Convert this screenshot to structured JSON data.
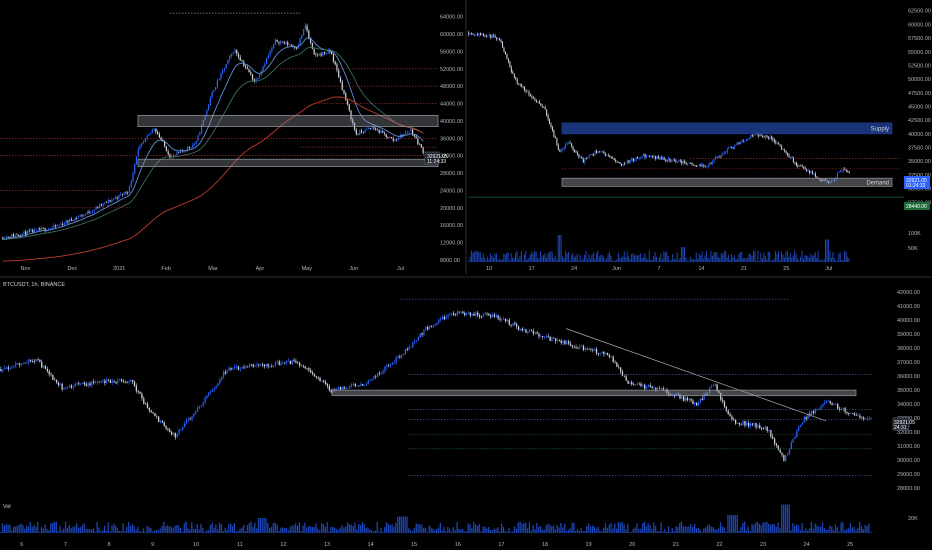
{
  "colors": {
    "background": "#000000",
    "candle_up": "#2962ff",
    "candle_down": "#d1d4dc",
    "ema_fast": "#5f8fd8",
    "ema_mid": "#3d7a66",
    "ema_slow": "#c0392b",
    "resistance_dotted": "#b2352b",
    "demand_zone_fill": "#9598a1",
    "supply_zone_fill": "#1e3d8f",
    "volume_bar": "#2962ff",
    "green_level": "#1f6b3a",
    "trendline": "#9598a1",
    "axis_text": "#b2b5be"
  },
  "chart_data": [
    {
      "id": "daily",
      "type": "candlestick",
      "title": "",
      "x_ticks": [
        "Nov",
        "Dec",
        "2021",
        "Feb",
        "Mar",
        "Apr",
        "May",
        "Jun",
        "Jul"
      ],
      "y_ticks": [
        "64000.00",
        "60000.00",
        "56000.00",
        "52000.00",
        "48000.00",
        "44000.00",
        "40000.00",
        "36000.00",
        "32000.00",
        "28000.00",
        "24000.00",
        "20000.00",
        "16000.00",
        "12000.00",
        "8000.00"
      ],
      "y_range": [
        8000,
        66000
      ],
      "last_price_label": "32921.05",
      "last_price_countdown": "11:24:33",
      "indicators": [
        "EMA fast",
        "EMA mid",
        "EMA slow"
      ],
      "zones": [
        {
          "label": "",
          "from": 38700,
          "to": 41300
        },
        {
          "label": "",
          "from": 29500,
          "to": 31200
        }
      ],
      "swing_high": 64800,
      "swing_low": 29500
    },
    {
      "id": "h4",
      "type": "candlestick",
      "title": "",
      "x_ticks": [
        "10",
        "17",
        "24",
        "Jun",
        "7",
        "14",
        "21",
        "25",
        "Jul"
      ],
      "y_ticks": [
        "62500.00",
        "60000.00",
        "57500.00",
        "55000.00",
        "52500.00",
        "50000.00",
        "47500.00",
        "45000.00",
        "42500.00",
        "40000.00",
        "37500.00",
        "35000.00",
        "32500.00",
        "30000.00",
        "27500.00"
      ],
      "y_range": [
        27000,
        63000
      ],
      "volume_ticks": [
        "100K",
        "50K"
      ],
      "last_price_label": "32921.05",
      "last_price_countdown": "01:24:33",
      "green_level_label": "28440.00",
      "zones": [
        {
          "label": "Supply",
          "from": 40000,
          "to": 42000
        },
        {
          "label": "Demand",
          "from": 30400,
          "to": 31900
        }
      ]
    },
    {
      "id": "h1",
      "type": "candlestick",
      "title": "BTCUSDT, 1h, BINANCE",
      "x_ticks": [
        "6",
        "7",
        "8",
        "9",
        "10",
        "11",
        "12",
        "13",
        "14",
        "15",
        "16",
        "17",
        "18",
        "19",
        "20",
        "21",
        "22",
        "23",
        "24",
        "25"
      ],
      "y_ticks": [
        "42000.00",
        "41000.00",
        "40000.00",
        "39000.00",
        "38000.00",
        "37000.00",
        "36000.00",
        "35000.00",
        "34000.00",
        "33000.00",
        "32000.00",
        "31000.00",
        "30000.00",
        "29000.00",
        "28000.00"
      ],
      "y_range": [
        27500,
        42300
      ],
      "volume_label": "Vol",
      "volume_ticks": [
        "20K"
      ],
      "last_price_label": "32921.05",
      "last_price_countdown": "24:31",
      "zones": [
        {
          "label": "",
          "from": 34600,
          "to": 35000
        }
      ],
      "trendline": {
        "from": 39400,
        "to": 32800
      },
      "dotted_levels": [
        41500,
        36100,
        33600,
        32900,
        31800,
        30800,
        28900
      ]
    }
  ]
}
